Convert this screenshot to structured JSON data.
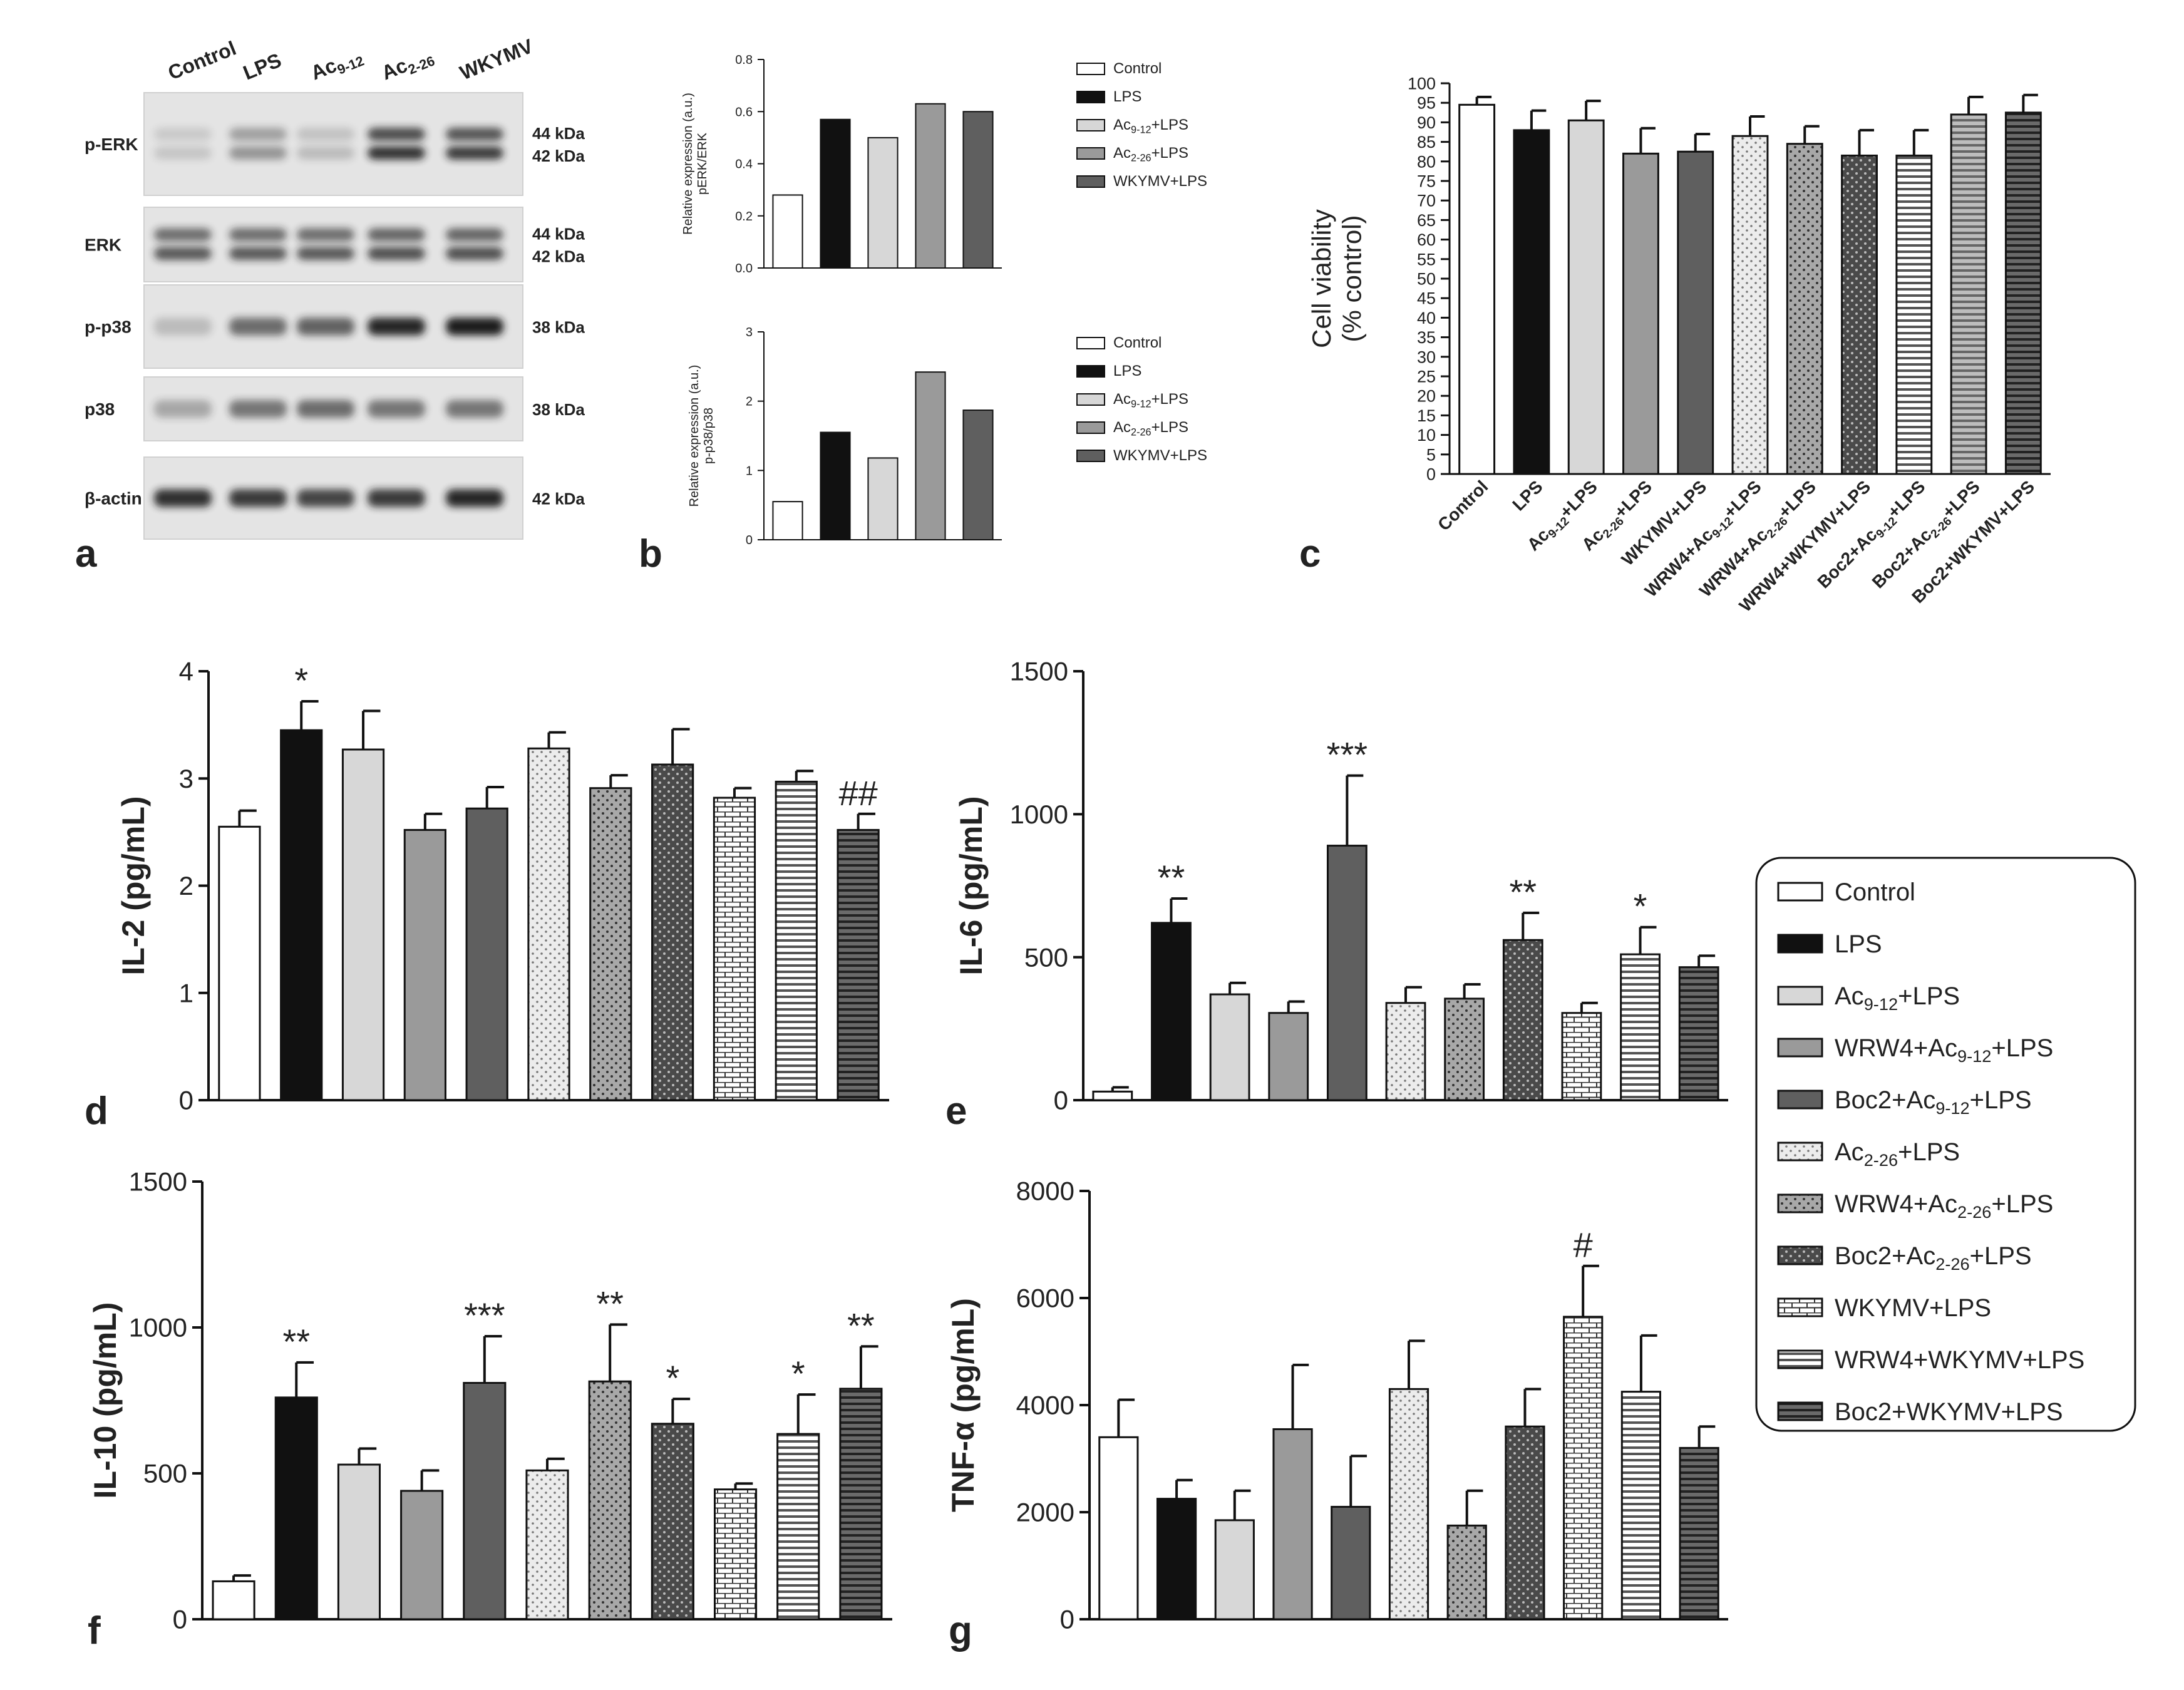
{
  "figure": {
    "panel_labels": [
      "a",
      "b",
      "c",
      "d",
      "e",
      "f",
      "g"
    ]
  },
  "legend": {
    "entries": [
      {
        "label": "Control",
        "fill": "white"
      },
      {
        "label": "LPS",
        "fill": "black"
      },
      {
        "label": "Ac9-12+LPS",
        "fill": "lightgray"
      },
      {
        "label": "WRW4+Ac9-12+LPS",
        "fill": "gray"
      },
      {
        "label": "Boc2+Ac9-12+LPS",
        "fill": "darkgray"
      },
      {
        "label": "Ac2-26+LPS",
        "fill": "dots-light"
      },
      {
        "label": "WRW4+Ac2-26+LPS",
        "fill": "dots-gray"
      },
      {
        "label": "Boc2+Ac2-26+LPS",
        "fill": "dots-dark"
      },
      {
        "label": "WKYMV+LPS",
        "fill": "bricks"
      },
      {
        "label": "WRW4+WKYMV+LPS",
        "fill": "hlines"
      },
      {
        "label": "Boc2+WKYMV+LPS",
        "fill": "hlines-dark"
      }
    ]
  },
  "blot": {
    "lanes": [
      "Control",
      "LPS",
      "Ac9-12",
      "Ac2-26",
      "WKYMV"
    ],
    "rows": [
      {
        "label": "p-ERK",
        "kda": [
          "44 kDa",
          "42 kDa"
        ],
        "intensity": [
          0.15,
          0.4,
          0.2,
          0.9,
          0.85
        ]
      },
      {
        "label": "ERK",
        "kda": [
          "44 kDa",
          "42 kDa"
        ],
        "intensity": [
          0.7,
          0.7,
          0.7,
          0.75,
          0.75
        ]
      },
      {
        "label": "p-p38",
        "kda": [
          "38 kDa"
        ],
        "intensity": [
          0.2,
          0.6,
          0.65,
          0.95,
          1.0
        ]
      },
      {
        "label": "p38",
        "kda": [
          "38 kDa"
        ],
        "intensity": [
          0.3,
          0.55,
          0.6,
          0.55,
          0.55
        ]
      },
      {
        "label": "β-actin",
        "kda": [
          "42 kDa"
        ],
        "intensity": [
          0.9,
          0.85,
          0.8,
          0.85,
          0.95
        ]
      }
    ]
  },
  "colors": {
    "white": "#ffffff",
    "black": "#111111",
    "lightgray": "#d7d7d7",
    "gray": "#9a9a9a",
    "darkgray": "#5f5f5f",
    "blot_bg": "#e4e4e4",
    "band": "#1a1a1a"
  },
  "chart_data": [
    {
      "id": "b1",
      "type": "bar",
      "title": "",
      "ylabel": "Relative expression (a.u.) pERK/ERK",
      "ylim": [
        0,
        0.8
      ],
      "yticks": [
        "0.0",
        "0.2",
        "0.4",
        "0.6",
        "0.8"
      ],
      "categories": [
        "Control",
        "LPS",
        "Ac9-12+LPS",
        "Ac2-26+LPS",
        "WKYMV+LPS"
      ],
      "values": [
        0.28,
        0.57,
        0.5,
        0.63,
        0.6
      ],
      "fills": [
        "white",
        "black",
        "lightgray",
        "gray",
        "darkgray"
      ],
      "legend": [
        "Control",
        "LPS",
        "Ac9-12+LPS",
        "Ac2-26+LPS",
        "WKYMV+LPS"
      ]
    },
    {
      "id": "b2",
      "type": "bar",
      "title": "",
      "ylabel": "Relative expression (a.u.) p-p38/p38",
      "ylim": [
        0,
        3
      ],
      "yticks": [
        "0",
        "1",
        "2",
        "3"
      ],
      "categories": [
        "Control",
        "LPS",
        "Ac9-12+LPS",
        "Ac2-26+LPS",
        "WKYMV+LPS"
      ],
      "values": [
        0.55,
        1.55,
        1.18,
        2.42,
        1.87
      ],
      "fills": [
        "white",
        "black",
        "lightgray",
        "gray",
        "darkgray"
      ],
      "legend": [
        "Control",
        "LPS",
        "Ac9-12+LPS",
        "Ac2-26+LPS",
        "WKYMV+LPS"
      ]
    },
    {
      "id": "c",
      "type": "bar",
      "title": "",
      "ylabel": "Cell viability (% control)",
      "ylim": [
        0,
        100
      ],
      "yticks": [
        "0",
        "5",
        "10",
        "15",
        "20",
        "25",
        "30",
        "35",
        "40",
        "45",
        "50",
        "55",
        "60",
        "65",
        "70",
        "75",
        "80",
        "85",
        "90",
        "95",
        "100"
      ],
      "categories": [
        "Control",
        "LPS",
        "Ac9-12+LPS",
        "Ac2-26+LPS",
        "WKYMV+LPS",
        "WRW4+Ac9-12+LPS",
        "WRW4+Ac2-26+LPS",
        "WRW4+WKYMV+LPS",
        "Boc2+Ac9-12+LPS",
        "Boc2+Ac2-26+LPS",
        "Boc2+WKYMV+LPS"
      ],
      "values": [
        94.5,
        88,
        90.5,
        82,
        82.5,
        86.5,
        84.5,
        81.5,
        81.5,
        92,
        92.5
      ],
      "errors": [
        2,
        5,
        5,
        6.5,
        4.5,
        5,
        4.5,
        6.5,
        6.5,
        4.5,
        4.5
      ],
      "fills": [
        "white",
        "black",
        "lightgray",
        "gray",
        "darkgray",
        "dots-light",
        "dots-gray",
        "dots-dark",
        "hlines",
        "hlines-gray",
        "hlines-dark"
      ]
    },
    {
      "id": "d",
      "type": "bar",
      "title": "",
      "ylabel": "IL-2 (pg/mL)",
      "ylim": [
        0,
        4
      ],
      "yticks": [
        "0",
        "1",
        "2",
        "3",
        "4"
      ],
      "categories": [
        "Control",
        "LPS",
        "Ac9-12+LPS",
        "WRW4+Ac9-12+LPS",
        "Boc2+Ac9-12+LPS",
        "Ac2-26+LPS",
        "WRW4+Ac2-26+LPS",
        "Boc2+Ac2-26+LPS",
        "WKYMV+LPS",
        "WRW4+WKYMV+LPS",
        "Boc2+WKYMV+LPS"
      ],
      "values": [
        2.55,
        3.45,
        3.27,
        2.52,
        2.72,
        3.28,
        2.91,
        3.13,
        2.82,
        2.97,
        2.52
      ],
      "errors": [
        0.15,
        0.27,
        0.36,
        0.15,
        0.2,
        0.15,
        0.12,
        0.33,
        0.09,
        0.1,
        0.15
      ],
      "annotations": [
        "",
        "*",
        "",
        "",
        "",
        "",
        "",
        "",
        "",
        "",
        "##"
      ],
      "fills": [
        "white",
        "black",
        "lightgray",
        "gray",
        "darkgray",
        "dots-light",
        "dots-gray",
        "dots-dark",
        "bricks",
        "hlines",
        "hlines-dark"
      ]
    },
    {
      "id": "e",
      "type": "bar",
      "title": "",
      "ylabel": "IL-6 (pg/mL)",
      "ylim": [
        0,
        1500
      ],
      "yticks": [
        "0",
        "500",
        "1000",
        "1500"
      ],
      "categories": [
        "Control",
        "LPS",
        "Ac9-12+LPS",
        "WRW4+Ac9-12+LPS",
        "Boc2+Ac9-12+LPS",
        "Ac2-26+LPS",
        "WRW4+Ac2-26+LPS",
        "Boc2+Ac2-26+LPS",
        "WKYMV+LPS",
        "WRW4+WKYMV+LPS",
        "Boc2+WKYMV+LPS"
      ],
      "values": [
        30,
        620,
        370,
        305,
        890,
        340,
        355,
        560,
        305,
        510,
        465
      ],
      "errors": [
        15,
        85,
        40,
        40,
        245,
        55,
        50,
        95,
        35,
        95,
        40
      ],
      "annotations": [
        "",
        "**",
        "",
        "",
        "***",
        "",
        "",
        "**",
        "",
        "*",
        ""
      ],
      "fills": [
        "white",
        "black",
        "lightgray",
        "gray",
        "darkgray",
        "dots-light",
        "dots-gray",
        "dots-dark",
        "bricks",
        "hlines",
        "hlines-dark"
      ]
    },
    {
      "id": "f",
      "type": "bar",
      "title": "",
      "ylabel": "IL-10 (pg/mL)",
      "ylim": [
        0,
        1500
      ],
      "yticks": [
        "0",
        "500",
        "1000",
        "1500"
      ],
      "categories": [
        "Control",
        "LPS",
        "Ac9-12+LPS",
        "WRW4+Ac9-12+LPS",
        "Boc2+Ac9-12+LPS",
        "Ac2-26+LPS",
        "WRW4+Ac2-26+LPS",
        "Boc2+Ac2-26+LPS",
        "WKYMV+LPS",
        "WRW4+WKYMV+LPS",
        "Boc2+WKYMV+LPS"
      ],
      "values": [
        130,
        760,
        530,
        440,
        810,
        510,
        815,
        670,
        445,
        635,
        790
      ],
      "errors": [
        20,
        120,
        55,
        70,
        160,
        40,
        195,
        85,
        20,
        135,
        145
      ],
      "annotations": [
        "",
        "**",
        "",
        "",
        "***",
        "",
        "**",
        "*",
        "",
        "*",
        "**"
      ],
      "fills": [
        "white",
        "black",
        "lightgray",
        "gray",
        "darkgray",
        "dots-light",
        "dots-gray",
        "dots-dark",
        "bricks",
        "hlines",
        "hlines-dark"
      ]
    },
    {
      "id": "g",
      "type": "bar",
      "title": "",
      "ylabel": "TNF-α (pg/mL)",
      "ylim": [
        0,
        8000
      ],
      "yticks": [
        "0",
        "2000",
        "4000",
        "6000",
        "8000"
      ],
      "categories": [
        "Control",
        "LPS",
        "Ac9-12+LPS",
        "WRW4+Ac9-12+LPS",
        "Boc2+Ac9-12+LPS",
        "Ac2-26+LPS",
        "WRW4+Ac2-26+LPS",
        "Boc2+Ac2-26+LPS",
        "WKYMV+LPS",
        "WRW4+WKYMV+LPS",
        "Boc2+WKYMV+LPS"
      ],
      "values": [
        3400,
        2250,
        1850,
        3550,
        2100,
        4300,
        1750,
        3600,
        5650,
        4250,
        3200
      ],
      "errors": [
        700,
        350,
        550,
        1200,
        950,
        900,
        650,
        700,
        950,
        1050,
        400
      ],
      "annotations": [
        "",
        "",
        "",
        "",
        "",
        "",
        "",
        "",
        "#",
        "",
        ""
      ],
      "fills": [
        "white",
        "black",
        "lightgray",
        "gray",
        "darkgray",
        "dots-light",
        "dots-gray",
        "dots-dark",
        "bricks",
        "hlines",
        "hlines-dark"
      ]
    }
  ]
}
